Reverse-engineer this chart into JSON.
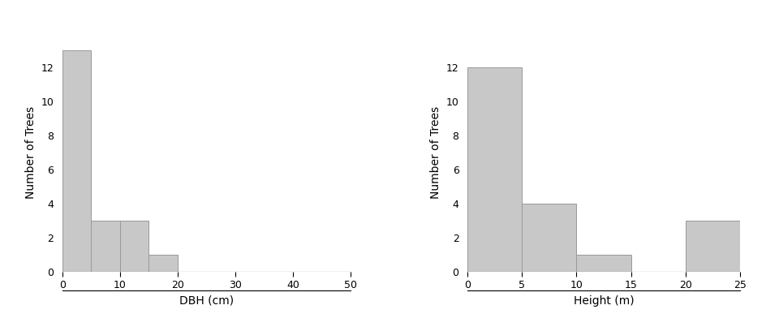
{
  "dbh_bin_edges": [
    0,
    5,
    10,
    15,
    20,
    25,
    30,
    35,
    40,
    45,
    50
  ],
  "dbh_counts": [
    13,
    3,
    3,
    1,
    0,
    0,
    0,
    0,
    0,
    0
  ],
  "dbh_xlabel": "DBH (cm)",
  "dbh_ylabel": "Number of Trees",
  "dbh_xlim": [
    0,
    50
  ],
  "dbh_ylim": [
    0,
    14
  ],
  "dbh_xticks": [
    0,
    10,
    20,
    30,
    40,
    50
  ],
  "dbh_yticks": [
    0,
    2,
    4,
    6,
    8,
    10,
    12
  ],
  "ht_bin_edges": [
    0,
    5,
    10,
    15,
    20,
    25
  ],
  "ht_counts": [
    12,
    4,
    1,
    0,
    3
  ],
  "ht_xlabel": "Height (m)",
  "ht_ylabel": "Number of Trees",
  "ht_xlim": [
    0,
    25
  ],
  "ht_ylim": [
    0,
    14
  ],
  "ht_xticks": [
    0,
    5,
    10,
    15,
    20,
    25
  ],
  "ht_yticks": [
    0,
    2,
    4,
    6,
    8,
    10,
    12
  ],
  "bar_color": "#c8c8c8",
  "bar_edgecolor": "#999999",
  "background_color": "#ffffff",
  "label_fontsize": 10,
  "tick_fontsize": 9
}
